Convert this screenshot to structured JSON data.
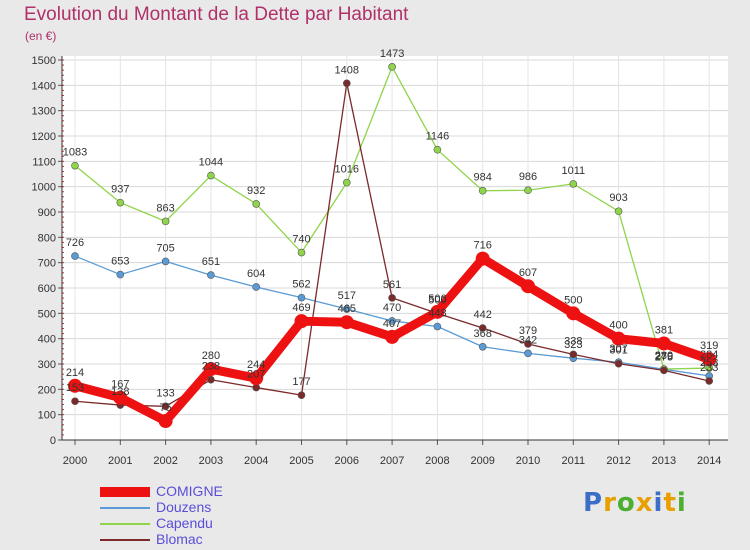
{
  "title": "Evolution du Montant de la Dette par Habitant",
  "subtitle": "(en €)",
  "logo": {
    "letters": [
      "P",
      "r",
      "o",
      "x",
      "i",
      "t",
      "i"
    ],
    "colors": [
      "#3b6fc7",
      "#e8a000",
      "#4caf2f",
      "#e8a000",
      "#3b6fc7",
      "#e8a000",
      "#4caf2f"
    ]
  },
  "chart_data": {
    "type": "line",
    "title": "Evolution du Montant de la Dette par Habitant",
    "ylabel": "(en €)",
    "xlabel": "",
    "x": [
      "2000",
      "2001",
      "2002",
      "2003",
      "2004",
      "2005",
      "2006",
      "2007",
      "2008",
      "2009",
      "2010",
      "2011",
      "2012",
      "2013",
      "2014"
    ],
    "ylim": [
      0,
      1500
    ],
    "yticks": [
      "0",
      "100",
      "200",
      "300",
      "400",
      "500",
      "600",
      "700",
      "800",
      "900",
      "1000",
      "1100",
      "1200",
      "1300",
      "1400",
      "1500"
    ],
    "grid": true,
    "legend_position": "bottom-left",
    "series": [
      {
        "name": "COMIGNE",
        "color": "#ee1111",
        "values": [
          214,
          167,
          75,
          280,
          244,
          469,
          465,
          407,
          506,
          716,
          607,
          500,
          400,
          381,
          319
        ],
        "labels": [
          "214",
          "167",
          "75",
          "280",
          "244",
          "469",
          "465",
          "407",
          "506",
          "716",
          "607",
          "500",
          "400",
          "381",
          "319"
        ]
      },
      {
        "name": "Douzens",
        "color": "#5b9bd5",
        "values": [
          726,
          653,
          705,
          651,
          604,
          562,
          517,
          470,
          448,
          368,
          342,
          323,
          307,
          279,
          253
        ],
        "labels": [
          "726",
          "653",
          "705",
          "651",
          "604",
          "562",
          "517",
          "470",
          "448",
          "368",
          "342",
          "323",
          "307",
          "279",
          "253"
        ]
      },
      {
        "name": "Capendu",
        "color": "#8fd44a",
        "values": [
          1083,
          937,
          863,
          1044,
          932,
          740,
          1016,
          1473,
          1146,
          984,
          986,
          1011,
          903,
          280,
          284
        ],
        "labels": [
          "1083",
          "937",
          "863",
          "1044",
          "932",
          "740",
          "1016",
          "1473",
          "1146",
          "984",
          "986",
          "1011",
          "903",
          "280",
          "284"
        ]
      },
      {
        "name": "Blomac",
        "color": "#7a2a2a",
        "values": [
          153,
          138,
          133,
          238,
          207,
          177,
          1408,
          561,
          500,
          442,
          379,
          338,
          301,
          275,
          233
        ],
        "labels": [
          "153",
          "138",
          "133",
          "238",
          "207",
          "177",
          "1408",
          "561",
          "500",
          "442",
          "379",
          "338",
          "301",
          "275",
          "233"
        ]
      }
    ]
  }
}
